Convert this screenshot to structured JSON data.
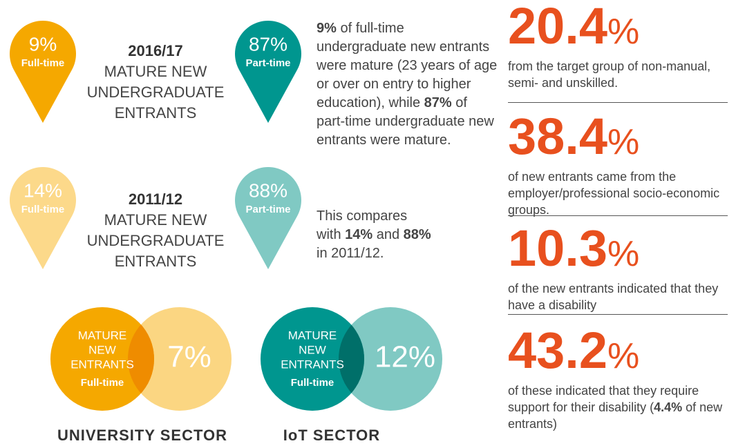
{
  "pins": [
    {
      "value": "9%",
      "label": "Full-time"
    },
    {
      "value": "87%",
      "label": "Part-time"
    },
    {
      "value": "14%",
      "label": "Full-time"
    },
    {
      "value": "88%",
      "label": "Part-time"
    }
  ],
  "groups": [
    {
      "year": "2016/17",
      "lines": [
        "MATURE NEW",
        "UNDERGRADUATE",
        "ENTRANTS"
      ]
    },
    {
      "year": "2011/12",
      "lines": [
        "MATURE NEW",
        "UNDERGRADUATE",
        "ENTRANTS"
      ]
    }
  ],
  "paragraphs": [
    [
      {
        "text": "9%",
        "bold": true
      },
      {
        "text": " of full-time undergraduate new entrants were mature (23 years of age or over on entry to higher education), while "
      },
      {
        "text": "87%",
        "bold": true
      },
      {
        "text": " of part-time undergraduate new entrants were mature."
      }
    ],
    [
      {
        "text": "This compares with "
      },
      {
        "text": "14%",
        "bold": true
      },
      {
        "text": " and "
      },
      {
        "text": "88%",
        "bold": true
      },
      {
        "text": " in 2011/12."
      }
    ]
  ],
  "venns": [
    {
      "lines": [
        "MATURE",
        "NEW",
        "ENTRANTS"
      ],
      "sub": "Full-time",
      "value": "7%",
      "sector": "UNIVERSITY SECTOR"
    },
    {
      "lines": [
        "MATURE",
        "NEW",
        "ENTRANTS"
      ],
      "sub": "Full-time",
      "value": "12%",
      "sector": "IoT SECTOR"
    }
  ],
  "stats": [
    {
      "number": "20.4",
      "unit": "%",
      "text": [
        {
          "text": "from the target group of non-manual, semi- and unskilled."
        }
      ]
    },
    {
      "number": "38.4",
      "unit": "%",
      "text": [
        {
          "text": "of new entrants came from the employer/professional socio-economic groups."
        }
      ]
    },
    {
      "number": "10.3",
      "unit": "%",
      "text": [
        {
          "text": "of the new entrants indicated that they have a disability"
        }
      ]
    },
    {
      "number": "43.2",
      "unit": "%",
      "text": [
        {
          "text": "of these indicated that they require support for their disability ("
        },
        {
          "text": "4.4%",
          "bold": true
        },
        {
          "text": " of new entrants)"
        }
      ]
    }
  ]
}
